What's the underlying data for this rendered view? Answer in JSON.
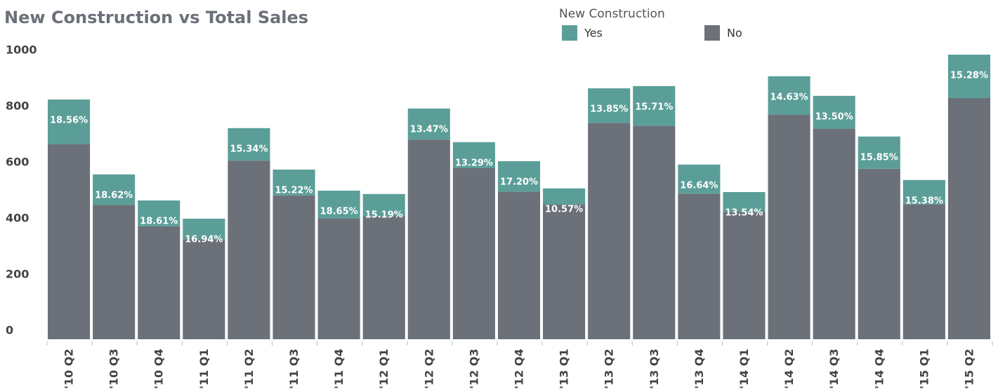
{
  "chart_data": {
    "type": "stacked_bar",
    "title": "New Construction vs Total Sales",
    "legend_title": "New Construction",
    "categories": [
      "'10 Q2",
      "'10 Q3",
      "'10 Q4",
      "'11 Q1",
      "'11 Q2",
      "'11 Q3",
      "'11 Q4",
      "'12 Q1",
      "'12 Q2",
      "'12 Q3",
      "'12 Q4",
      "'13 Q1",
      "'13 Q2",
      "'13 Q3",
      "'13 Q4",
      "'14 Q1",
      "'14 Q2",
      "'14 Q3",
      "'14 Q4",
      "'15 Q1",
      "'15 Q2"
    ],
    "series": [
      {
        "name": "No",
        "color": "#6b7079",
        "values": [
          696,
          479,
          403,
          357,
          637,
          513,
          431,
          439,
          712,
          610,
          526,
          481,
          771,
          761,
          519,
          454,
          801,
          751,
          608,
          481,
          860
        ]
      },
      {
        "name": "Yes",
        "color": "#5b9e98",
        "values": [
          159,
          109,
          92,
          73,
          116,
          92,
          99,
          79,
          111,
          93,
          109,
          57,
          124,
          142,
          104,
          71,
          137,
          117,
          115,
          87,
          155
        ]
      }
    ],
    "share_labels": [
      "18.56%",
      "18.62%",
      "18.61%",
      "16.94%",
      "15.34%",
      "15.22%",
      "18.65%",
      "15.19%",
      "13.47%",
      "13.29%",
      "17.20%",
      "10.57%",
      "13.85%",
      "15.71%",
      "16.64%",
      "13.54%",
      "14.63%",
      "13.50%",
      "15.85%",
      "15.38%",
      "15.28%"
    ],
    "ylim": [
      0,
      1040
    ],
    "yticks": [
      0,
      200,
      400,
      600,
      800,
      1000
    ]
  }
}
